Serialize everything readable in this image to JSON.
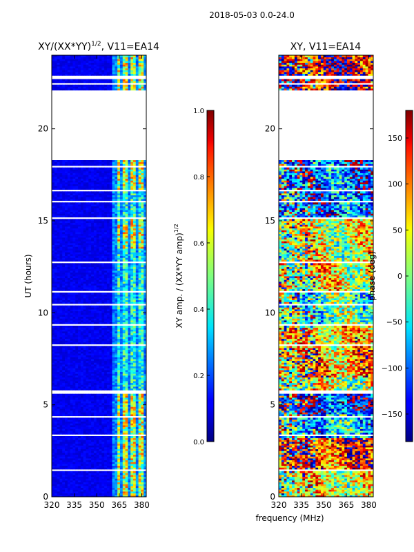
{
  "suptitle": "2018-05-03 0.0-24.0",
  "xlabel": "frequency (MHz)",
  "chart_data": [
    {
      "type": "heatmap",
      "title": "XY/(XX*YY)",
      "title_exponent": "1/2",
      "title_suffix": ", V11=EA14",
      "ylabel": "UT (hours)",
      "xlim": [
        320,
        383
      ],
      "ylim": [
        0,
        24
      ],
      "xticks": [
        320,
        335,
        350,
        365,
        380
      ],
      "yticks": [
        0,
        5,
        10,
        15,
        20
      ],
      "colorbar": {
        "label": "XY amp. / (XX*YY amp)",
        "label_exponent": "1/2",
        "range": [
          0.0,
          1.0
        ],
        "ticks": [
          "0.0",
          "0.2",
          "0.4",
          "0.6",
          "0.8",
          "1.0"
        ],
        "colormap": "jet"
      },
      "blank_hour_ranges": [
        [
          0.3,
          0.35
        ],
        [
          1.45,
          1.5
        ],
        [
          1.9,
          1.95
        ],
        [
          2.7,
          2.75
        ],
        [
          3.1,
          3.15
        ],
        [
          3.35,
          3.45
        ],
        [
          4.35,
          4.4
        ],
        [
          4.9,
          4.95
        ],
        [
          5.6,
          5.85
        ],
        [
          6.2,
          6.25
        ],
        [
          6.9,
          6.95
        ],
        [
          7.3,
          7.35
        ],
        [
          8.0,
          8.05
        ],
        [
          8.25,
          8.3
        ],
        [
          9.3,
          9.4
        ],
        [
          10.45,
          10.5
        ],
        [
          10.8,
          10.85
        ],
        [
          11.15,
          11.2
        ],
        [
          12.2,
          12.25
        ],
        [
          12.75,
          12.8
        ],
        [
          13.0,
          13.05
        ],
        [
          15.15,
          15.2
        ],
        [
          15.6,
          15.65
        ],
        [
          16.05,
          16.1
        ],
        [
          16.6,
          16.7
        ],
        [
          17.1,
          17.15
        ],
        [
          17.6,
          17.65
        ],
        [
          17.95,
          18.05
        ],
        [
          18.35,
          22.1
        ],
        [
          22.45,
          22.55
        ],
        [
          22.75,
          22.9
        ],
        [
          23.4,
          23.45
        ]
      ],
      "bright_channel_ranges_mhz": [
        [
          363,
          366
        ],
        [
          368,
          370
        ],
        [
          373,
          376
        ],
        [
          378,
          381
        ]
      ],
      "bright_hour_ranges": [
        [
          0,
          5.6
        ],
        [
          13.5,
          15.15
        ],
        [
          16.7,
          18.35
        ],
        [
          22.1,
          24
        ]
      ]
    },
    {
      "type": "heatmap",
      "title": "XY, V11=EA14",
      "xlim": [
        320,
        383
      ],
      "ylim": [
        0,
        24
      ],
      "xticks": [
        320,
        335,
        350,
        365,
        380
      ],
      "yticks": [
        0,
        5,
        10,
        15,
        20
      ],
      "colorbar": {
        "label": "phase (deg)",
        "range": [
          -180,
          180
        ],
        "ticks": [
          "-150",
          "-100",
          "-50",
          "0",
          "50",
          "100",
          "150"
        ],
        "colormap": "jet"
      },
      "phase_bands": [
        {
          "hours": [
            0,
            1.5
          ],
          "mean_deg": 40
        },
        {
          "hours": [
            1.5,
            3.2
          ],
          "mean_deg": 120
        },
        {
          "hours": [
            3.2,
            4.5
          ],
          "mean_deg": -60
        },
        {
          "hours": [
            4.5,
            5.6
          ],
          "mean_deg": -120
        },
        {
          "hours": [
            5.6,
            6.5
          ],
          "mean_deg": 20
        },
        {
          "hours": [
            6.5,
            8.0
          ],
          "mean_deg": 80
        },
        {
          "hours": [
            8.0,
            9.3
          ],
          "mean_deg": 60
        },
        {
          "hours": [
            9.3,
            11.2
          ],
          "mean_deg": -20
        },
        {
          "hours": [
            11.2,
            13.0
          ],
          "mean_deg": 40
        },
        {
          "hours": [
            13.0,
            15.15
          ],
          "mean_deg": 30
        },
        {
          "hours": [
            15.15,
            18.35
          ],
          "mean_deg": -100
        },
        {
          "hours": [
            22.1,
            24
          ],
          "mean_deg": 150
        }
      ]
    }
  ]
}
